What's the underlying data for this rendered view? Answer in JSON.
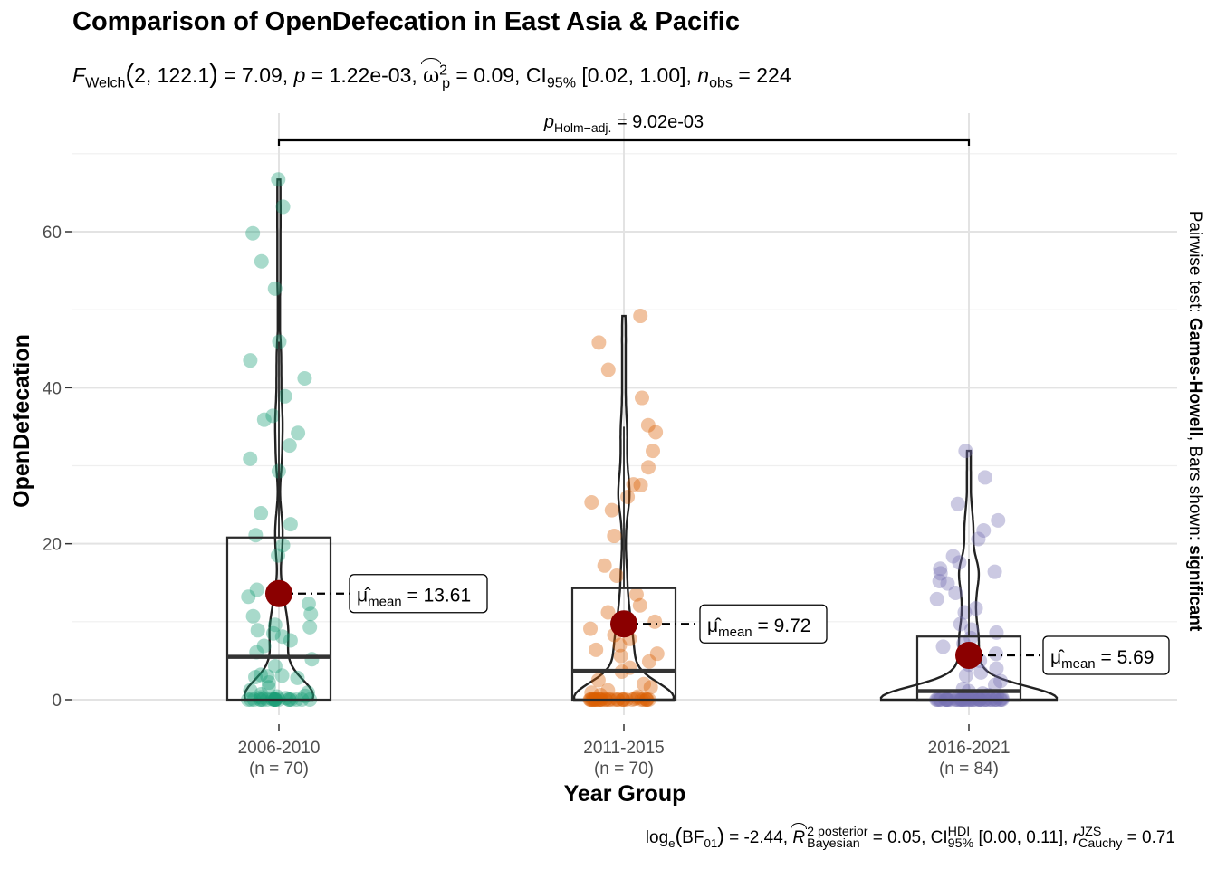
{
  "chart_data": {
    "type": "violin-box-scatter",
    "title": "Comparison of OpenDefecation in East Asia & Pacific",
    "subtitle": {
      "stat_name": "F",
      "stat_sub": "Welch",
      "df": "2, 122.1",
      "stat_value": "7.09",
      "p_value": "1.22e-03",
      "effect_name": "ω",
      "effect_sup": "2",
      "effect_sub": "p",
      "effect_value": "0.09",
      "ci_label": "CI",
      "ci_sub": "95%",
      "ci_value": "[0.02, 1.00]",
      "n_name": "n",
      "n_sub": "obs",
      "n_value": "224"
    },
    "caption": {
      "log_text": "log",
      "log_sub": "e",
      "bf_text": "BF",
      "bf_sub": "01",
      "bf_value": "-2.44",
      "r_name": "R",
      "r_sup": "2",
      "r_sup2": "posterior",
      "r_sub": "Bayesian",
      "r_value": "0.05",
      "ci_label": "CI",
      "ci_sup": "HDI",
      "ci_sub": "95%",
      "ci_value": "[0.00, 0.11]",
      "r_cauchy_name": "r",
      "r_cauchy_sup": "JZS",
      "r_cauchy_sub": "Cauchy",
      "r_cauchy_value": "0.71"
    },
    "xlabel": "Year Group",
    "ylabel": "OpenDefecation",
    "right_label": {
      "prefix": "Pairwise test: ",
      "test": "Games-Howell",
      "middle": ", Bars shown: ",
      "shown": "significant"
    },
    "ylim": [
      -3,
      72
    ],
    "yticks": [
      0,
      20,
      40,
      60
    ],
    "grid": true,
    "categories": [
      "2006-2010",
      "2011-2015",
      "2016-2021"
    ],
    "n_labels": [
      "(n = 70)",
      "(n = 70)",
      "(n = 84)"
    ],
    "colors": [
      "#1B9E77",
      "#D95F02",
      "#7570B3"
    ],
    "mean_color": "#8B0000",
    "groups": [
      {
        "name": "2006-2010",
        "n": 70,
        "mean": 13.61,
        "mean_label": "= 13.61",
        "median": 5.5,
        "q1": 0.0,
        "q3": 20.8,
        "whisker_high": 45.9,
        "max": 66.7,
        "points": [
          66.7,
          63.2,
          59.8,
          56.2,
          52.7,
          45.9,
          43.5,
          41.2,
          38.9,
          36.4,
          35.9,
          34.2,
          32.6,
          30.9,
          29.3,
          23.9,
          22.5,
          21.1,
          19.8,
          18.5,
          14.1,
          13.2,
          12.3,
          11.0,
          10.7,
          9.6,
          9.3,
          8.9,
          8.5,
          8.1,
          7.6,
          6.9,
          6.1,
          5.2,
          4.3,
          3.2,
          3.1,
          3.0,
          2.9,
          2.8,
          2.2,
          1.6,
          1.2,
          0.9,
          0.7,
          0.5,
          0.4,
          0.3,
          0.2,
          0.1,
          0,
          0,
          0,
          0,
          0,
          0,
          0,
          0,
          0,
          0,
          0,
          0,
          0,
          0,
          0,
          0,
          0,
          0,
          0,
          0
        ]
      },
      {
        "name": "2011-2015",
        "n": 70,
        "mean": 9.72,
        "mean_label": "= 9.72",
        "median": 3.7,
        "q1": 0.0,
        "q3": 14.3,
        "whisker_high": 35.0,
        "max": 49.2,
        "points": [
          49.2,
          45.8,
          42.3,
          38.7,
          35.2,
          34.3,
          31.9,
          29.8,
          27.5,
          27.6,
          26.0,
          25.3,
          24.3,
          21.0,
          17.2,
          15.9,
          13.5,
          12.1,
          11.2,
          10.0,
          9.1,
          8.3,
          7.8,
          7.0,
          6.4,
          5.9,
          5.6,
          4.9,
          4.1,
          3.6,
          2.5,
          2.0,
          1.6,
          1.2,
          0.9,
          0.6,
          0.4,
          0.2,
          0.1,
          0,
          0,
          0,
          0,
          0,
          0,
          0,
          0,
          0,
          0,
          0,
          0,
          0,
          0,
          0,
          0,
          0,
          0,
          0,
          0,
          0,
          0,
          0,
          0,
          0,
          0,
          0,
          0,
          0,
          0,
          0
        ]
      },
      {
        "name": "2016-2021",
        "n": 84,
        "mean": 5.69,
        "mean_label": "= 5.69",
        "median": 1.1,
        "q1": 0.0,
        "q3": 8.1,
        "whisker_high": 18.0,
        "max": 31.9,
        "points": [
          31.9,
          28.5,
          25.1,
          23.0,
          21.7,
          20.6,
          18.4,
          17.6,
          16.8,
          16.4,
          16.2,
          15.2,
          14.9,
          13.7,
          12.9,
          11.7,
          11.2,
          9.7,
          9.0,
          8.6,
          7.9,
          7.2,
          6.8,
          5.9,
          5.0,
          4.5,
          4.0,
          3.5,
          3.1,
          2.4,
          1.9,
          1.4,
          1.1,
          0.8,
          0.6,
          0.4,
          0.3,
          0.2,
          0.1,
          0,
          0,
          0,
          0,
          0,
          0,
          0,
          0,
          0,
          0,
          0,
          0,
          0,
          0,
          0,
          0,
          0,
          0,
          0,
          0,
          0,
          0,
          0,
          0,
          0,
          0,
          0,
          0,
          0,
          0,
          0,
          0,
          0,
          0,
          0,
          0,
          0,
          0,
          0,
          0,
          0,
          0,
          0,
          0,
          0
        ]
      }
    ],
    "comparison": {
      "from": "2006-2010",
      "to": "2016-2021",
      "p_label_name": "p",
      "p_label_sub": "Holm−adj.",
      "p_value": "= 9.02e-03"
    }
  }
}
